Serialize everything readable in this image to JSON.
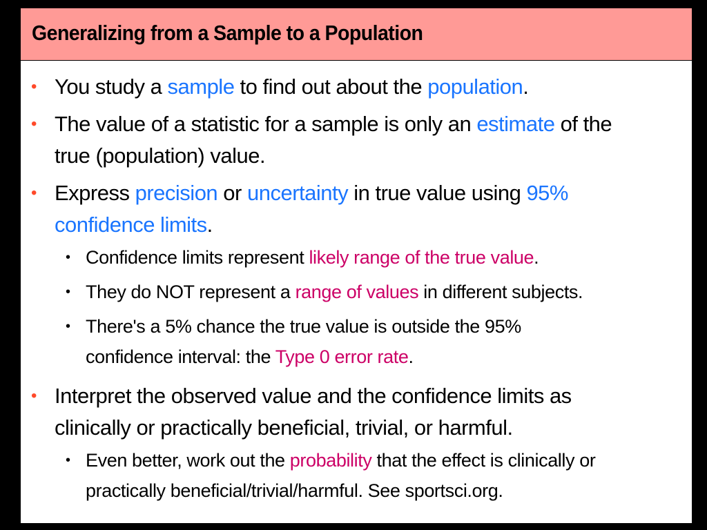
{
  "title": "Generalizing from a Sample to a Population",
  "colors": {
    "title_bar": "#ff9a96",
    "level1_bullet": "#ff4a2a",
    "highlight_blue": "#1a75ff",
    "highlight_magenta": "#cc0066"
  },
  "bullets": {
    "b1": {
      "p1": "You study a ",
      "h1": "sample",
      "p2": " to find out about the ",
      "h2": "population",
      "p3": "."
    },
    "b2": {
      "p1": "The value of a statistic for a sample is only an ",
      "h1": "estimate",
      "p2": " of the",
      "line2": "true (population) value."
    },
    "b3": {
      "p1": "Express ",
      "h1": "precision",
      "p2": " or ",
      "h2": "uncertainty",
      "p3": " in true value using ",
      "h3": "95%",
      "h4": "confidence limits",
      "p4": ".",
      "sub1": {
        "p1": "Confidence limits represent ",
        "h1": "likely range of the true value",
        "p2": "."
      },
      "sub2": {
        "p1": "They do NOT represent a ",
        "h1": "range of values",
        "p2": " in different subjects."
      },
      "sub3": {
        "line1": "There's a 5% chance the true value is outside the 95%",
        "p1": "confidence interval: the ",
        "h1": "Type 0 error rate",
        "p2": "."
      }
    },
    "b4": {
      "line1": "Interpret the observed value and the confidence limits as",
      "line2": "clinically or practically beneficial, trivial, or harmful.",
      "sub1": {
        "p1": "Even better, work out the ",
        "h1": "probability",
        "p2": " that the effect is clinically or",
        "line2": "practically beneficial/trivial/harmful. See sportsci.org."
      }
    },
    "bullet_glyph": "•"
  }
}
